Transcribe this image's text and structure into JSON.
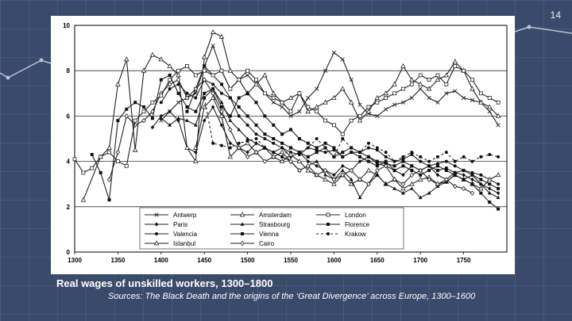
{
  "slide": {
    "number": "14",
    "title": "Real wages of unskilled workers, 1300–1800",
    "source": "Sources: The Black Death and the origins of the ‘Great Divergence’ across Europe, 1300–1600"
  },
  "chart_data": {
    "type": "line",
    "title": "Real wages of unskilled workers, 1300–1800",
    "xlabel": "",
    "ylabel": "",
    "xlim": [
      1300,
      1800
    ],
    "ylim": [
      0,
      10
    ],
    "xticks": [
      1300,
      1350,
      1400,
      1450,
      1500,
      1550,
      1600,
      1650,
      1700,
      1750
    ],
    "yticks": [
      0,
      2,
      4,
      6,
      8,
      10
    ],
    "grid": true,
    "legend": "bottom-center",
    "series": [
      {
        "name": "Antwerp",
        "marker": "x",
        "dash": "",
        "x": [
          1400,
          1410,
          1420,
          1430,
          1440,
          1450,
          1460,
          1470,
          1480,
          1490,
          1500,
          1510,
          1520,
          1530,
          1540,
          1550,
          1560,
          1570,
          1580,
          1590,
          1600,
          1610,
          1620,
          1630,
          1640,
          1650,
          1660,
          1670,
          1680,
          1690,
          1700,
          1710,
          1720,
          1730,
          1740,
          1750,
          1760,
          1770,
          1780,
          1790
        ],
        "y": [
          5.8,
          6.2,
          6.6,
          6.8,
          7.0,
          8.2,
          9.1,
          8.0,
          7.2,
          7.6,
          7.8,
          7.4,
          7.0,
          6.6,
          6.4,
          6.0,
          6.2,
          6.8,
          7.2,
          8.0,
          8.8,
          8.5,
          7.6,
          6.5,
          6.1,
          6.0,
          6.3,
          6.5,
          6.6,
          6.8,
          7.2,
          6.8,
          6.6,
          7.0,
          7.1,
          6.8,
          6.7,
          6.6,
          6.2,
          5.6
        ]
      },
      {
        "name": "Paris",
        "marker": "diamond",
        "dash": "",
        "x": [
          1390,
          1400,
          1410,
          1420,
          1430,
          1440,
          1450,
          1460,
          1470,
          1480,
          1490,
          1500,
          1510,
          1520,
          1530,
          1540,
          1550,
          1560,
          1570,
          1580,
          1590,
          1600,
          1610,
          1620,
          1630,
          1640,
          1650,
          1660,
          1670,
          1680,
          1690,
          1700,
          1710,
          1720,
          1730,
          1740,
          1750,
          1760,
          1770,
          1780,
          1790
        ],
        "y": [
          5.5,
          6.0,
          6.2,
          5.8,
          4.6,
          4.4,
          5.8,
          6.4,
          5.6,
          4.8,
          4.6,
          4.4,
          4.8,
          4.6,
          4.4,
          4.6,
          4.2,
          4.4,
          4.0,
          3.8,
          3.6,
          3.4,
          3.8,
          3.6,
          4.0,
          4.2,
          3.9,
          3.8,
          3.6,
          3.4,
          3.8,
          3.6,
          3.8,
          3.4,
          3.2,
          3.5,
          3.4,
          3.2,
          3.0,
          2.8,
          2.6
        ]
      },
      {
        "name": "Valencia",
        "marker": "circle",
        "dash": "",
        "x": [
          1400,
          1410,
          1420,
          1430,
          1440,
          1450,
          1460,
          1470,
          1480,
          1490,
          1500,
          1510,
          1520,
          1530,
          1540,
          1550,
          1560,
          1570,
          1580,
          1590,
          1600,
          1610,
          1620,
          1630,
          1640,
          1650,
          1660,
          1670,
          1680,
          1690,
          1700,
          1710,
          1720,
          1730,
          1740,
          1750,
          1760,
          1770,
          1780,
          1790
        ],
        "y": [
          6.6,
          7.2,
          7.4,
          7.0,
          6.8,
          7.6,
          7.4,
          7.0,
          6.8,
          6.0,
          5.6,
          5.2,
          5.0,
          4.8,
          4.6,
          4.4,
          4.3,
          4.6,
          4.5,
          4.4,
          4.5,
          4.2,
          4.4,
          4.4,
          4.6,
          4.5,
          4.2,
          4.0,
          4.1,
          4.3,
          4.0,
          3.8,
          3.9,
          4.0,
          3.8,
          3.6,
          3.5,
          3.4,
          3.2,
          3.0
        ]
      },
      {
        "name": "Istanbul",
        "marker": "triangle-open",
        "dash": "",
        "x": [
          1440,
          1450,
          1460,
          1470,
          1480,
          1490,
          1500,
          1510,
          1520,
          1530,
          1540,
          1550,
          1560,
          1570,
          1580,
          1590,
          1600,
          1610,
          1620,
          1630,
          1640,
          1650,
          1660,
          1670,
          1680,
          1690,
          1700,
          1710,
          1720,
          1730,
          1740,
          1750,
          1760,
          1770,
          1780,
          1790
        ],
        "y": [
          4.6,
          6.4,
          6.8,
          6.0,
          4.2,
          4.6,
          4.8,
          4.4,
          4.6,
          4.2,
          4.0,
          4.3,
          4.0,
          3.6,
          3.4,
          3.2,
          3.0,
          3.4,
          3.0,
          3.2,
          3.6,
          3.4,
          3.0,
          3.2,
          2.8,
          3.0,
          3.2,
          3.3,
          3.0,
          3.1,
          3.4,
          3.2,
          3.0,
          2.8,
          3.2,
          3.4
        ]
      },
      {
        "name": "Amsterdam",
        "marker": "triangle-open",
        "dash": "",
        "x": [
          1310,
          1330,
          1340,
          1350,
          1360,
          1370,
          1380,
          1390,
          1400,
          1410,
          1420,
          1430,
          1440,
          1450,
          1460,
          1470,
          1480,
          1490,
          1500,
          1510,
          1520,
          1530,
          1540,
          1550,
          1560,
          1570,
          1580,
          1590,
          1600,
          1610,
          1620,
          1630,
          1640,
          1650,
          1660,
          1670,
          1680,
          1690,
          1700,
          1710,
          1720,
          1730,
          1740,
          1750,
          1760,
          1770,
          1780,
          1790
        ],
        "y": [
          2.3,
          4.2,
          4.6,
          7.4,
          8.5,
          4.5,
          8.0,
          8.7,
          8.5,
          8.2,
          7.8,
          4.6,
          4.0,
          8.6,
          9.7,
          9.5,
          8.0,
          7.6,
          7.0,
          7.4,
          7.8,
          7.0,
          6.6,
          6.8,
          7.0,
          6.2,
          6.4,
          6.6,
          6.8,
          7.2,
          6.6,
          5.8,
          6.2,
          6.8,
          7.0,
          7.4,
          8.2,
          7.6,
          7.4,
          7.2,
          7.6,
          7.8,
          8.4,
          8.0,
          7.2,
          6.6,
          6.4,
          6.0
        ]
      },
      {
        "name": "Strasbourg",
        "marker": "triangle",
        "dash": "",
        "x": [
          1400,
          1410,
          1420,
          1430,
          1440,
          1450,
          1460,
          1470,
          1480,
          1490,
          1500,
          1510,
          1520,
          1530,
          1540,
          1550,
          1560,
          1570,
          1580,
          1590,
          1600,
          1610,
          1620,
          1630,
          1640,
          1650,
          1660,
          1670,
          1680,
          1690,
          1700,
          1710,
          1720,
          1730,
          1740,
          1750,
          1760,
          1770,
          1780,
          1790
        ],
        "y": [
          5.9,
          5.6,
          5.9,
          5.8,
          5.6,
          6.8,
          7.2,
          6.6,
          5.8,
          5.4,
          5.0,
          4.8,
          4.6,
          4.4,
          4.2,
          4.0,
          3.6,
          3.8,
          4.0,
          3.4,
          3.2,
          3.6,
          3.2,
          2.4,
          3.0,
          3.4,
          3.0,
          2.8,
          2.6,
          2.8,
          2.4,
          2.6,
          2.9,
          3.1,
          3.4,
          3.2,
          3.4,
          3.0,
          2.6,
          2.4
        ]
      },
      {
        "name": "Vienna",
        "marker": "square",
        "dash": "",
        "x": [
          1430,
          1440,
          1450,
          1460,
          1470,
          1480,
          1490,
          1500,
          1510,
          1520,
          1530,
          1540,
          1550,
          1560,
          1570,
          1580,
          1590,
          1600,
          1610,
          1620,
          1630,
          1640,
          1650,
          1660,
          1670,
          1680,
          1690,
          1700,
          1710,
          1720,
          1730,
          1740,
          1750,
          1760,
          1770,
          1780,
          1790
        ],
        "y": [
          6.2,
          7.2,
          8.2,
          7.8,
          7.4,
          6.8,
          6.4,
          6.0,
          5.6,
          5.2,
          5.0,
          4.8,
          4.6,
          4.4,
          4.2,
          4.4,
          4.6,
          4.2,
          4.4,
          4.6,
          4.4,
          4.2,
          4.0,
          3.9,
          3.8,
          4.0,
          3.8,
          3.6,
          3.8,
          3.6,
          3.7,
          3.5,
          3.6,
          3.4,
          3.2,
          3.0,
          2.8
        ]
      },
      {
        "name": "Cairo",
        "marker": "diamond-open",
        "dash": "",
        "x": [
          1340,
          1350,
          1360,
          1370,
          1380,
          1390,
          1400,
          1410,
          1420,
          1430,
          1440,
          1450,
          1460,
          1470,
          1480,
          1490,
          1500,
          1510,
          1520,
          1530,
          1540,
          1550,
          1560,
          1570,
          1580,
          1590,
          1600,
          1610,
          1620,
          1630,
          1640,
          1650,
          1660,
          1670,
          1680,
          1690,
          1700,
          1710,
          1720,
          1730,
          1740,
          1750,
          1760
        ],
        "y": [
          3.2,
          4.4,
          6.0,
          5.6,
          5.8,
          6.2,
          7.0,
          7.4,
          7.6,
          6.8,
          7.2,
          7.6,
          7.0,
          6.2,
          5.4,
          4.6,
          4.2,
          4.4,
          4.0,
          4.2,
          4.4,
          4.0,
          3.6,
          3.8,
          3.4,
          3.6,
          3.2,
          3.4,
          3.6,
          3.2,
          3.0,
          3.6,
          3.8,
          3.2,
          3.0,
          3.4,
          3.6,
          3.2,
          3.0,
          3.2,
          2.9,
          2.8,
          2.6
        ]
      },
      {
        "name": "London",
        "marker": "square-open",
        "dash": "",
        "x": [
          1300,
          1310,
          1320,
          1330,
          1340,
          1350,
          1360,
          1370,
          1380,
          1390,
          1400,
          1410,
          1420,
          1430,
          1440,
          1450,
          1460,
          1470,
          1480,
          1490,
          1500,
          1510,
          1520,
          1530,
          1540,
          1550,
          1560,
          1570,
          1580,
          1590,
          1600,
          1610,
          1620,
          1630,
          1640,
          1650,
          1660,
          1670,
          1680,
          1690,
          1700,
          1710,
          1720,
          1730,
          1740,
          1750,
          1760,
          1770,
          1780,
          1790
        ],
        "y": [
          4.1,
          3.5,
          3.7,
          4.2,
          4.4,
          4.0,
          3.8,
          5.8,
          6.2,
          6.6,
          6.9,
          7.6,
          8.0,
          8.2,
          7.8,
          8.0,
          7.8,
          8.0,
          7.2,
          7.6,
          8.0,
          7.6,
          7.0,
          6.8,
          6.6,
          6.2,
          7.0,
          6.4,
          6.2,
          5.8,
          5.6,
          5.2,
          5.8,
          6.0,
          6.4,
          6.6,
          6.8,
          7.0,
          7.2,
          7.4,
          7.8,
          7.6,
          7.8,
          7.4,
          8.2,
          8.0,
          7.6,
          7.0,
          6.8,
          6.6
        ]
      },
      {
        "name": "Florence",
        "marker": "square",
        "dash": "",
        "x": [
          1320,
          1330,
          1340,
          1350,
          1360,
          1370,
          1380,
          1390,
          1400,
          1410,
          1420,
          1430,
          1440,
          1450,
          1460,
          1470,
          1480,
          1490,
          1500,
          1510,
          1520,
          1530,
          1540,
          1550,
          1560,
          1570,
          1580,
          1590,
          1600,
          1610,
          1620,
          1630,
          1640,
          1650,
          1660,
          1670,
          1680,
          1690,
          1700,
          1710,
          1720,
          1730,
          1740,
          1750,
          1760,
          1770,
          1780,
          1790
        ],
        "y": [
          4.3,
          3.5,
          2.3,
          5.8,
          6.3,
          6.6,
          6.4,
          5.9,
          7.6,
          7.8,
          7.0,
          6.4,
          6.2,
          7.0,
          7.2,
          6.4,
          6.0,
          6.8,
          7.0,
          6.6,
          6.0,
          5.6,
          5.2,
          5.4,
          5.0,
          4.8,
          4.6,
          4.8,
          4.6,
          4.2,
          4.4,
          4.2,
          4.0,
          3.8,
          4.0,
          3.6,
          3.8,
          3.6,
          3.4,
          3.6,
          3.8,
          3.6,
          3.4,
          3.2,
          3.0,
          2.6,
          2.2,
          1.9
        ]
      },
      {
        "name": "Krakow",
        "marker": "circle",
        "dash": "3,3",
        "x": [
          1450,
          1460,
          1470,
          1480,
          1490,
          1500,
          1510,
          1520,
          1530,
          1540,
          1550,
          1560,
          1570,
          1580,
          1590,
          1600,
          1610,
          1620,
          1630,
          1640,
          1650,
          1660,
          1670,
          1680,
          1690,
          1700,
          1710,
          1720,
          1730,
          1740,
          1750,
          1760,
          1770,
          1780,
          1790
        ],
        "y": [
          6.8,
          4.8,
          4.7,
          4.6,
          4.8,
          4.9,
          5.0,
          4.6,
          4.4,
          4.2,
          4.6,
          4.4,
          4.6,
          5.0,
          4.6,
          4.2,
          5.0,
          4.6,
          4.4,
          4.8,
          4.6,
          4.4,
          4.0,
          4.2,
          4.4,
          4.2,
          4.0,
          4.2,
          4.4,
          4.0,
          4.2,
          4.0,
          4.2,
          4.3,
          4.2
        ]
      }
    ]
  }
}
